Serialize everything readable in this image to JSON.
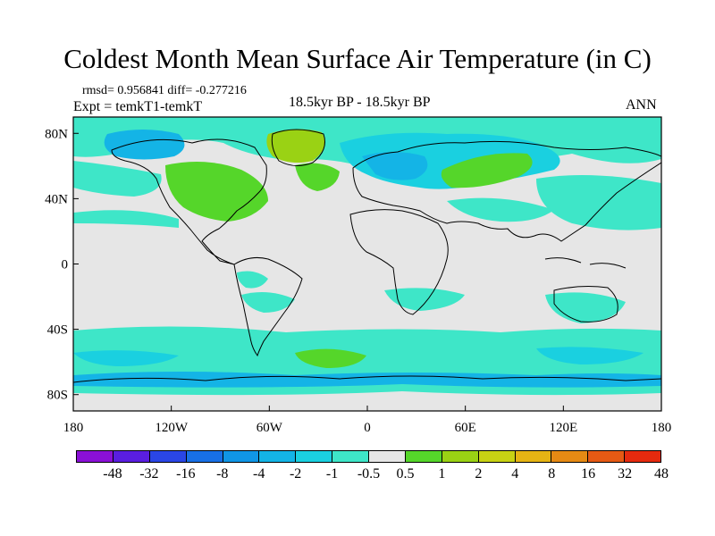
{
  "title": "Coldest Month Mean Surface Air Temperature (in C)",
  "stats": "rmsd= 0.956841 diff= -0.277216",
  "expt": "Expt = temkT1-temkT",
  "period": "18.5kyr BP - 18.5kyr BP",
  "season": "ANN",
  "axes": {
    "x_ticks": [
      "180",
      "120W",
      "60W",
      "0",
      "60E",
      "120E",
      "180"
    ],
    "y_ticks": [
      "80N",
      "40N",
      "0",
      "40S",
      "80S"
    ]
  },
  "colorbar": {
    "labels": [
      "-48",
      "-32",
      "-16",
      "-8",
      "-4",
      "-2",
      "-1",
      "-0.5",
      "0.5",
      "1",
      "2",
      "4",
      "8",
      "16",
      "32",
      "48"
    ],
    "colors": [
      "#8a10d6",
      "#5a1ee0",
      "#2a46e6",
      "#1870e6",
      "#1096e6",
      "#14b4e6",
      "#1ad0e0",
      "#3ee6c8",
      "#e6e6e6",
      "#55d62a",
      "#9ad214",
      "#c8d214",
      "#e6b414",
      "#e68a14",
      "#e65a14",
      "#e62a0e"
    ]
  },
  "fill_colors": {
    "ocean_base": "#e6e6e6",
    "cool_1": "#3ee6c8",
    "cool_2": "#1ad0e0",
    "cool_3": "#14b4e6",
    "warm_1": "#55d62a",
    "warm_2": "#9ad214"
  }
}
